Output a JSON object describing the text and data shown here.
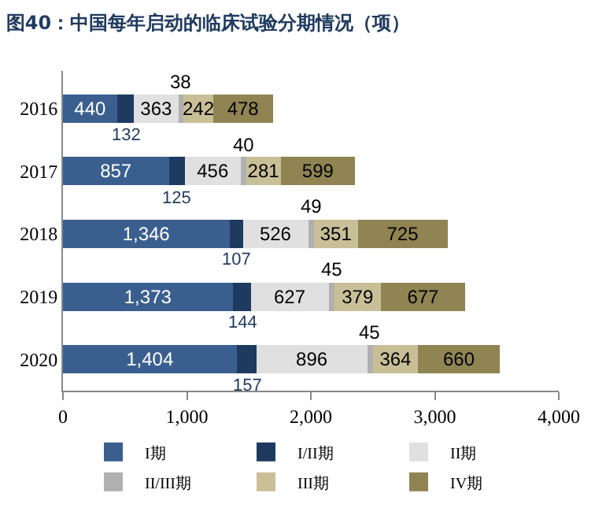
{
  "chart_data": {
    "type": "bar",
    "orientation": "horizontal",
    "stacked": true,
    "title": "图40：中国每年启动的临床试验分期情况（项）",
    "categories": [
      "2016",
      "2017",
      "2018",
      "2019",
      "2020"
    ],
    "series": [
      {
        "name": "I期",
        "color": "#3a5f8f",
        "values": [
          440,
          857,
          1346,
          1373,
          1404
        ],
        "value_labels": [
          "440",
          "857",
          "1,346",
          "1,373",
          "1,404"
        ]
      },
      {
        "name": "I/II期",
        "color": "#1f3a5f",
        "values": [
          132,
          125,
          107,
          144,
          157
        ],
        "value_labels": [
          "132",
          "125",
          "107",
          "144",
          "157"
        ]
      },
      {
        "name": "II期",
        "color": "#e0e0e0",
        "values": [
          363,
          456,
          526,
          627,
          896
        ],
        "value_labels": [
          "363",
          "456",
          "526",
          "627",
          "896"
        ]
      },
      {
        "name": "II/III期",
        "color": "#b0b0b0",
        "values": [
          38,
          40,
          49,
          45,
          45
        ],
        "value_labels": [
          "38",
          "40",
          "49",
          "45",
          "45"
        ]
      },
      {
        "name": "III期",
        "color": "#c9bf97",
        "values": [
          242,
          281,
          351,
          379,
          364
        ],
        "value_labels": [
          "242",
          "281",
          "351",
          "379",
          "364"
        ]
      },
      {
        "name": "IV期",
        "color": "#8f8452",
        "values": [
          478,
          599,
          725,
          677,
          660
        ],
        "value_labels": [
          "478",
          "599",
          "725",
          "677",
          "660"
        ]
      }
    ],
    "xlim": [
      0,
      4000
    ],
    "xticks": [
      0,
      {
        "value": 1000,
        "label": "1,000"
      },
      {
        "value": 2000,
        "label": "2,000"
      },
      {
        "value": 3000,
        "label": "3,000"
      },
      {
        "value": 4000,
        "label": "4,000"
      }
    ],
    "legend": "bottom"
  }
}
